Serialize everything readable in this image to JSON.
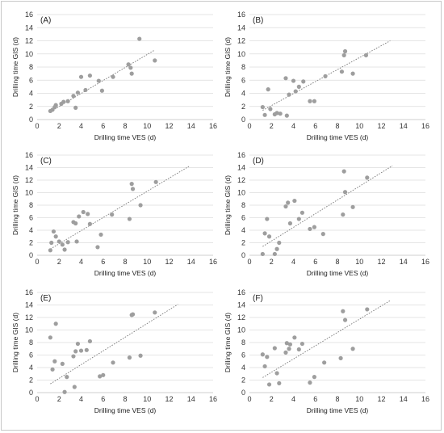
{
  "chart_data": [
    {
      "type": "scatter",
      "panel_label": "(A)",
      "xlabel": "Drilling time VES (d)",
      "ylabel": "Drilling time GIS (d)",
      "xlim": [
        0,
        16
      ],
      "ylim": [
        0,
        16
      ],
      "xticks": [
        0,
        2,
        4,
        6,
        8,
        10,
        12,
        14,
        16
      ],
      "yticks": [
        0,
        2,
        4,
        6,
        8,
        10,
        12,
        14,
        16
      ],
      "trendline": {
        "x": [
          1.2,
          10.7
        ],
        "y": [
          1.2,
          10.6
        ]
      },
      "points": [
        {
          "x": 1.2,
          "y": 1.3
        },
        {
          "x": 1.4,
          "y": 1.5
        },
        {
          "x": 1.6,
          "y": 1.9
        },
        {
          "x": 1.7,
          "y": 2.2
        },
        {
          "x": 2.2,
          "y": 2.4
        },
        {
          "x": 2.4,
          "y": 2.7
        },
        {
          "x": 2.8,
          "y": 2.8
        },
        {
          "x": 3.3,
          "y": 3.6
        },
        {
          "x": 3.5,
          "y": 1.8
        },
        {
          "x": 3.7,
          "y": 4.1
        },
        {
          "x": 4.0,
          "y": 6.5
        },
        {
          "x": 4.4,
          "y": 4.5
        },
        {
          "x": 4.8,
          "y": 6.7
        },
        {
          "x": 5.6,
          "y": 5.9
        },
        {
          "x": 5.9,
          "y": 4.4
        },
        {
          "x": 6.9,
          "y": 6.5
        },
        {
          "x": 8.3,
          "y": 8.4
        },
        {
          "x": 8.5,
          "y": 7.9
        },
        {
          "x": 8.6,
          "y": 7.0
        },
        {
          "x": 9.3,
          "y": 12.3
        },
        {
          "x": 10.7,
          "y": 9.0
        }
      ]
    },
    {
      "type": "scatter",
      "panel_label": "(B)",
      "xlabel": "Drilling time VES (d)",
      "ylabel": "Drilling time GIS (d)",
      "xlim": [
        0,
        16
      ],
      "ylim": [
        0,
        16
      ],
      "xticks": [
        0,
        2,
        4,
        6,
        8,
        10,
        12,
        14,
        16
      ],
      "yticks": [
        0,
        2,
        4,
        6,
        8,
        10,
        12,
        14,
        16
      ],
      "trendline": {
        "x": [
          1.2,
          12.8
        ],
        "y": [
          1.4,
          12.0
        ]
      },
      "points": [
        {
          "x": 1.2,
          "y": 1.9
        },
        {
          "x": 1.4,
          "y": 0.7
        },
        {
          "x": 1.7,
          "y": 4.6
        },
        {
          "x": 1.9,
          "y": 1.6
        },
        {
          "x": 2.3,
          "y": 0.8
        },
        {
          "x": 2.5,
          "y": 1.0
        },
        {
          "x": 2.8,
          "y": 0.9
        },
        {
          "x": 3.3,
          "y": 6.3
        },
        {
          "x": 3.4,
          "y": 0.6
        },
        {
          "x": 3.6,
          "y": 3.8
        },
        {
          "x": 4.0,
          "y": 5.9
        },
        {
          "x": 4.2,
          "y": 4.3
        },
        {
          "x": 4.5,
          "y": 5.0
        },
        {
          "x": 4.9,
          "y": 5.8
        },
        {
          "x": 5.5,
          "y": 2.8
        },
        {
          "x": 5.9,
          "y": 2.8
        },
        {
          "x": 6.9,
          "y": 6.6
        },
        {
          "x": 8.4,
          "y": 7.3
        },
        {
          "x": 8.6,
          "y": 9.8
        },
        {
          "x": 8.7,
          "y": 10.4
        },
        {
          "x": 9.4,
          "y": 7.0
        },
        {
          "x": 10.6,
          "y": 9.8
        }
      ]
    },
    {
      "type": "scatter",
      "panel_label": "(C)",
      "xlabel": "Drilling time VES (d)",
      "ylabel": "Drilling time GIS (d)",
      "xlim": [
        0,
        16
      ],
      "ylim": [
        0,
        16
      ],
      "xticks": [
        0,
        2,
        4,
        6,
        8,
        10,
        12,
        14,
        16
      ],
      "yticks": [
        0,
        2,
        4,
        6,
        8,
        10,
        12,
        14,
        16
      ],
      "trendline": {
        "x": [
          1.2,
          13.8
        ],
        "y": [
          1.0,
          14.2
        ]
      },
      "points": [
        {
          "x": 1.2,
          "y": 0.8
        },
        {
          "x": 1.3,
          "y": 2.0
        },
        {
          "x": 1.5,
          "y": 3.8
        },
        {
          "x": 1.7,
          "y": 3.0
        },
        {
          "x": 2.0,
          "y": 2.2
        },
        {
          "x": 2.3,
          "y": 1.7
        },
        {
          "x": 2.5,
          "y": 0.9
        },
        {
          "x": 2.8,
          "y": 2.1
        },
        {
          "x": 3.3,
          "y": 5.3
        },
        {
          "x": 3.5,
          "y": 5.1
        },
        {
          "x": 3.6,
          "y": 2.2
        },
        {
          "x": 3.8,
          "y": 6.2
        },
        {
          "x": 4.2,
          "y": 6.9
        },
        {
          "x": 4.6,
          "y": 6.6
        },
        {
          "x": 4.8,
          "y": 5.0
        },
        {
          "x": 5.5,
          "y": 1.3
        },
        {
          "x": 5.8,
          "y": 3.3
        },
        {
          "x": 6.8,
          "y": 6.5
        },
        {
          "x": 8.4,
          "y": 5.8
        },
        {
          "x": 8.6,
          "y": 11.4
        },
        {
          "x": 8.7,
          "y": 10.6
        },
        {
          "x": 9.4,
          "y": 8.0
        },
        {
          "x": 10.8,
          "y": 11.7
        }
      ]
    },
    {
      "type": "scatter",
      "panel_label": "(D)",
      "xlabel": "Drilling time VES (d)",
      "ylabel": "Drilling time GIS (d)",
      "xlim": [
        0,
        16
      ],
      "ylim": [
        0,
        16
      ],
      "xticks": [
        0,
        2,
        4,
        6,
        8,
        10,
        12,
        14,
        16
      ],
      "yticks": [
        0,
        2,
        4,
        6,
        8,
        10,
        12,
        14,
        16
      ],
      "trendline": {
        "x": [
          1.2,
          13.0
        ],
        "y": [
          1.4,
          14.3
        ]
      },
      "points": [
        {
          "x": 1.2,
          "y": 0.2
        },
        {
          "x": 1.4,
          "y": 3.5
        },
        {
          "x": 1.6,
          "y": 5.8
        },
        {
          "x": 1.8,
          "y": 3.0
        },
        {
          "x": 2.3,
          "y": 0.2
        },
        {
          "x": 2.5,
          "y": 1.0
        },
        {
          "x": 2.7,
          "y": 2.0
        },
        {
          "x": 3.3,
          "y": 7.8
        },
        {
          "x": 3.5,
          "y": 8.4
        },
        {
          "x": 3.7,
          "y": 5.1
        },
        {
          "x": 4.1,
          "y": 8.7
        },
        {
          "x": 4.5,
          "y": 5.8
        },
        {
          "x": 4.8,
          "y": 6.8
        },
        {
          "x": 5.5,
          "y": 4.2
        },
        {
          "x": 5.9,
          "y": 4.5
        },
        {
          "x": 6.7,
          "y": 3.4
        },
        {
          "x": 8.5,
          "y": 6.5
        },
        {
          "x": 8.6,
          "y": 13.4
        },
        {
          "x": 8.7,
          "y": 10.1
        },
        {
          "x": 9.4,
          "y": 7.7
        },
        {
          "x": 10.7,
          "y": 12.4
        }
      ]
    },
    {
      "type": "scatter",
      "panel_label": "(E)",
      "xlabel": "Drilling time VES (d)",
      "ylabel": "Drilling time GIS (d)",
      "xlim": [
        0,
        16
      ],
      "ylim": [
        0,
        16
      ],
      "xticks": [
        0,
        2,
        4,
        6,
        8,
        10,
        12,
        14,
        16
      ],
      "yticks": [
        0,
        2,
        4,
        6,
        8,
        10,
        12,
        14,
        16
      ],
      "trendline": {
        "x": [
          1.2,
          12.8
        ],
        "y": [
          1.4,
          14.1
        ]
      },
      "points": [
        {
          "x": 1.2,
          "y": 8.8
        },
        {
          "x": 1.4,
          "y": 3.7
        },
        {
          "x": 1.6,
          "y": 5.0
        },
        {
          "x": 1.7,
          "y": 11.0
        },
        {
          "x": 2.3,
          "y": 4.6
        },
        {
          "x": 2.5,
          "y": 0.1
        },
        {
          "x": 2.7,
          "y": 2.5
        },
        {
          "x": 3.3,
          "y": 5.8
        },
        {
          "x": 3.4,
          "y": 0.9
        },
        {
          "x": 3.5,
          "y": 6.6
        },
        {
          "x": 3.7,
          "y": 7.8
        },
        {
          "x": 4.0,
          "y": 6.7
        },
        {
          "x": 4.5,
          "y": 6.8
        },
        {
          "x": 4.8,
          "y": 8.2
        },
        {
          "x": 5.7,
          "y": 2.6
        },
        {
          "x": 6.0,
          "y": 2.8
        },
        {
          "x": 6.9,
          "y": 4.8
        },
        {
          "x": 8.4,
          "y": 5.6
        },
        {
          "x": 8.6,
          "y": 12.4
        },
        {
          "x": 8.7,
          "y": 12.5
        },
        {
          "x": 9.4,
          "y": 5.9
        },
        {
          "x": 10.7,
          "y": 12.8
        }
      ]
    },
    {
      "type": "scatter",
      "panel_label": "(F)",
      "xlabel": "Drilling time VES (d)",
      "ylabel": "Drilling time GIS (d)",
      "xlim": [
        0,
        16
      ],
      "ylim": [
        0,
        16
      ],
      "xticks": [
        0,
        2,
        4,
        6,
        8,
        10,
        12,
        14,
        16
      ],
      "yticks": [
        0,
        2,
        4,
        6,
        8,
        10,
        12,
        14,
        16
      ],
      "trendline": {
        "x": [
          1.2,
          12.8
        ],
        "y": [
          2.4,
          14.7
        ]
      },
      "points": [
        {
          "x": 1.2,
          "y": 6.1
        },
        {
          "x": 1.4,
          "y": 4.2
        },
        {
          "x": 1.6,
          "y": 5.7
        },
        {
          "x": 1.8,
          "y": 1.3
        },
        {
          "x": 2.3,
          "y": 7.1
        },
        {
          "x": 2.5,
          "y": 3.1
        },
        {
          "x": 2.7,
          "y": 1.5
        },
        {
          "x": 3.3,
          "y": 6.4
        },
        {
          "x": 3.4,
          "y": 7.9
        },
        {
          "x": 3.6,
          "y": 7.0
        },
        {
          "x": 3.7,
          "y": 7.7
        },
        {
          "x": 4.1,
          "y": 8.8
        },
        {
          "x": 4.5,
          "y": 6.9
        },
        {
          "x": 4.8,
          "y": 7.8
        },
        {
          "x": 5.5,
          "y": 1.6
        },
        {
          "x": 5.9,
          "y": 2.5
        },
        {
          "x": 6.8,
          "y": 4.8
        },
        {
          "x": 8.3,
          "y": 5.5
        },
        {
          "x": 8.5,
          "y": 13.0
        },
        {
          "x": 8.7,
          "y": 11.6
        },
        {
          "x": 9.4,
          "y": 7.0
        },
        {
          "x": 10.7,
          "y": 13.3
        }
      ]
    }
  ]
}
